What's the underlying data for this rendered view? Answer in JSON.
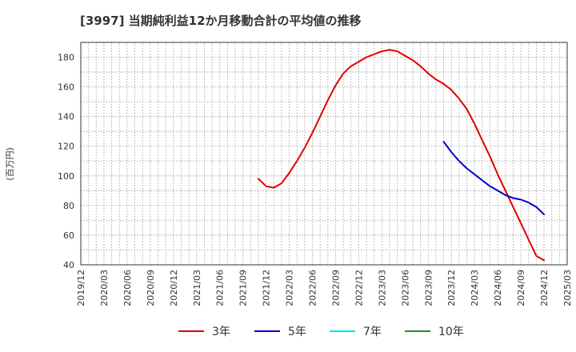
{
  "chart_data": {
    "type": "line",
    "title": "[3997]  当期純利益12か月移動合計の平均値の推移",
    "ylabel": "(百万円)",
    "xlabel": "",
    "ylim": [
      40,
      190
    ],
    "yticks": [
      40,
      60,
      80,
      100,
      120,
      140,
      160,
      180
    ],
    "xlim": [
      "2019/12",
      "2025/03"
    ],
    "xticks": [
      "2019/12",
      "2020/03",
      "2020/06",
      "2020/09",
      "2020/12",
      "2021/03",
      "2021/06",
      "2021/09",
      "2021/12",
      "2022/03",
      "2022/06",
      "2022/09",
      "2022/12",
      "2023/03",
      "2023/06",
      "2023/09",
      "2023/12",
      "2024/03",
      "2024/06",
      "2024/09",
      "2024/12",
      "2025/03"
    ],
    "grid": true,
    "series": [
      {
        "name": "3年",
        "color": "#e00000",
        "points": [
          [
            "2021/11",
            98
          ],
          [
            "2021/12",
            93
          ],
          [
            "2022/01",
            92
          ],
          [
            "2022/02",
            95
          ],
          [
            "2022/03",
            102
          ],
          [
            "2022/04",
            110
          ],
          [
            "2022/05",
            119
          ],
          [
            "2022/06",
            129
          ],
          [
            "2022/07",
            140
          ],
          [
            "2022/08",
            151
          ],
          [
            "2022/09",
            161
          ],
          [
            "2022/10",
            169
          ],
          [
            "2022/11",
            174
          ],
          [
            "2022/12",
            177
          ],
          [
            "2023/01",
            180
          ],
          [
            "2023/02",
            182
          ],
          [
            "2023/03",
            184
          ],
          [
            "2023/04",
            185
          ],
          [
            "2023/05",
            184
          ],
          [
            "2023/06",
            181
          ],
          [
            "2023/07",
            178
          ],
          [
            "2023/08",
            174
          ],
          [
            "2023/09",
            169
          ],
          [
            "2023/10",
            165
          ],
          [
            "2023/11",
            162
          ],
          [
            "2023/12",
            158
          ],
          [
            "2024/01",
            152
          ],
          [
            "2024/02",
            145
          ],
          [
            "2024/03",
            135
          ],
          [
            "2024/04",
            124
          ],
          [
            "2024/05",
            113
          ],
          [
            "2024/06",
            101
          ],
          [
            "2024/07",
            90
          ],
          [
            "2024/08",
            79
          ],
          [
            "2024/09",
            68
          ],
          [
            "2024/10",
            57
          ],
          [
            "2024/11",
            46
          ],
          [
            "2024/12",
            43
          ]
        ]
      },
      {
        "name": "5年",
        "color": "#0000cc",
        "points": [
          [
            "2023/11",
            123
          ],
          [
            "2023/12",
            116
          ],
          [
            "2024/01",
            110
          ],
          [
            "2024/02",
            105
          ],
          [
            "2024/03",
            101
          ],
          [
            "2024/04",
            97
          ],
          [
            "2024/05",
            93
          ],
          [
            "2024/06",
            90
          ],
          [
            "2024/07",
            87
          ],
          [
            "2024/08",
            85
          ],
          [
            "2024/09",
            84
          ],
          [
            "2024/10",
            82
          ],
          [
            "2024/11",
            79
          ],
          [
            "2024/12",
            74
          ]
        ]
      },
      {
        "name": "7年",
        "color": "#00e5ee",
        "points": []
      },
      {
        "name": "10年",
        "color": "#228b22",
        "points": []
      }
    ]
  }
}
